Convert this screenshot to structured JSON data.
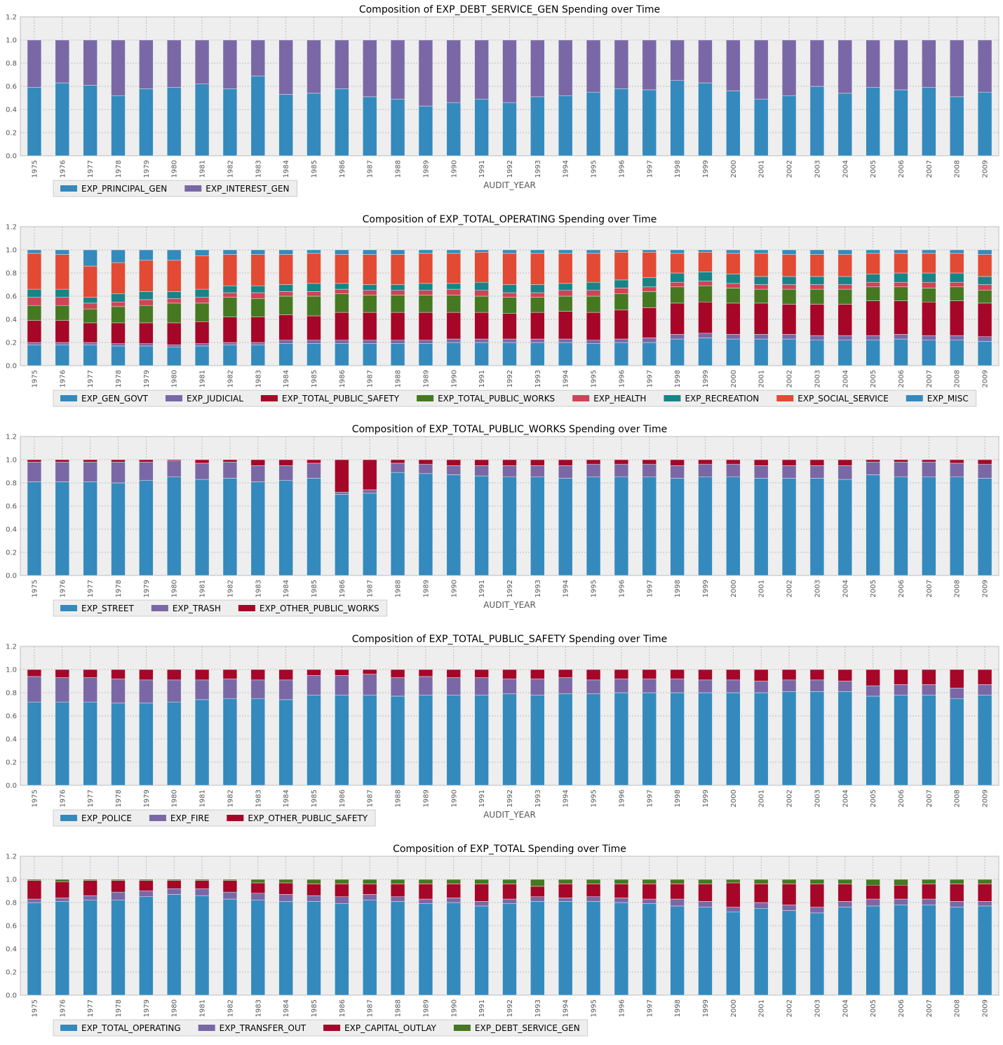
{
  "colors": {
    "panel_bg": "#EEEEEE",
    "grid": "#B0B0B0",
    "axis_text": "#555555",
    "title_text": "#000000",
    "bar_edge": "#EEEEEE",
    "palette": [
      "#348ABD",
      "#7A68A6",
      "#A60628",
      "#467821",
      "#CF4457",
      "#188487",
      "#E24A33",
      "#348ABD"
    ]
  },
  "chart_data": [
    {
      "type": "bar",
      "stacked": true,
      "title": "Composition of EXP_DEBT_SERVICE_GEN Spending over Time",
      "xlabel": "AUDIT_YEAR",
      "ylabel": "",
      "ylim": [
        0,
        1.2
      ],
      "yticks": [
        "0.0",
        "0.2",
        "0.4",
        "0.6",
        "0.8",
        "1.0",
        "1.2"
      ],
      "grid": true,
      "legend": "below-left",
      "categories": [
        "1975",
        "1976",
        "1977",
        "1978",
        "1979",
        "1980",
        "1981",
        "1982",
        "1983",
        "1984",
        "1985",
        "1986",
        "1987",
        "1988",
        "1989",
        "1990",
        "1991",
        "1992",
        "1993",
        "1994",
        "1995",
        "1996",
        "1997",
        "1998",
        "1999",
        "2000",
        "2001",
        "2002",
        "2003",
        "2004",
        "2005",
        "2006",
        "2007",
        "2008",
        "2009"
      ],
      "series": [
        {
          "name": "EXP_PRINCIPAL_GEN",
          "values": [
            0.59,
            0.63,
            0.61,
            0.52,
            0.58,
            0.59,
            0.62,
            0.58,
            0.69,
            0.53,
            0.54,
            0.58,
            0.51,
            0.49,
            0.43,
            0.46,
            0.49,
            0.46,
            0.51,
            0.52,
            0.55,
            0.58,
            0.57,
            0.65,
            0.63,
            0.56,
            0.49,
            0.52,
            0.6,
            0.54,
            0.59,
            0.57,
            0.59,
            0.51,
            0.55
          ]
        },
        {
          "name": "EXP_INTEREST_GEN",
          "values": [
            0.41,
            0.37,
            0.39,
            0.48,
            0.42,
            0.41,
            0.38,
            0.42,
            0.31,
            0.47,
            0.46,
            0.42,
            0.49,
            0.51,
            0.57,
            0.54,
            0.51,
            0.54,
            0.49,
            0.48,
            0.45,
            0.42,
            0.43,
            0.35,
            0.37,
            0.44,
            0.51,
            0.48,
            0.4,
            0.46,
            0.41,
            0.43,
            0.41,
            0.49,
            0.45
          ]
        }
      ]
    },
    {
      "type": "bar",
      "stacked": true,
      "title": "Composition of EXP_TOTAL_OPERATING Spending over Time",
      "xlabel": "",
      "ylabel": "",
      "ylim": [
        0,
        1.2
      ],
      "yticks": [
        "0.0",
        "0.2",
        "0.4",
        "0.6",
        "0.8",
        "1.0",
        "1.2"
      ],
      "grid": true,
      "legend": "below-left",
      "categories": [
        "1975",
        "1976",
        "1977",
        "1978",
        "1979",
        "1980",
        "1981",
        "1982",
        "1983",
        "1984",
        "1985",
        "1986",
        "1987",
        "1988",
        "1989",
        "1990",
        "1991",
        "1992",
        "1993",
        "1994",
        "1995",
        "1996",
        "1997",
        "1998",
        "1999",
        "2000",
        "2001",
        "2002",
        "2003",
        "2004",
        "2005",
        "2006",
        "2007",
        "2008",
        "2009"
      ],
      "series": [
        {
          "name": "EXP_GEN_GOVT",
          "values": [
            0.18,
            0.18,
            0.18,
            0.17,
            0.17,
            0.16,
            0.17,
            0.18,
            0.18,
            0.19,
            0.19,
            0.19,
            0.19,
            0.19,
            0.19,
            0.2,
            0.2,
            0.2,
            0.2,
            0.2,
            0.19,
            0.2,
            0.2,
            0.23,
            0.24,
            0.23,
            0.23,
            0.23,
            0.22,
            0.22,
            0.22,
            0.23,
            0.22,
            0.22,
            0.21
          ]
        },
        {
          "name": "EXP_JUDICIAL",
          "values": [
            0.02,
            0.02,
            0.02,
            0.02,
            0.02,
            0.02,
            0.02,
            0.02,
            0.02,
            0.03,
            0.03,
            0.03,
            0.03,
            0.03,
            0.03,
            0.03,
            0.03,
            0.03,
            0.03,
            0.03,
            0.03,
            0.03,
            0.04,
            0.04,
            0.04,
            0.04,
            0.04,
            0.04,
            0.04,
            0.04,
            0.04,
            0.04,
            0.04,
            0.04,
            0.04
          ]
        },
        {
          "name": "EXP_TOTAL_PUBLIC_SAFETY",
          "values": [
            0.19,
            0.19,
            0.17,
            0.18,
            0.18,
            0.19,
            0.19,
            0.22,
            0.22,
            0.22,
            0.21,
            0.24,
            0.24,
            0.24,
            0.24,
            0.23,
            0.23,
            0.22,
            0.23,
            0.24,
            0.24,
            0.25,
            0.26,
            0.27,
            0.27,
            0.27,
            0.27,
            0.26,
            0.27,
            0.27,
            0.3,
            0.29,
            0.29,
            0.3,
            0.29
          ]
        },
        {
          "name": "EXP_TOTAL_PUBLIC_WORKS",
          "values": [
            0.13,
            0.13,
            0.12,
            0.14,
            0.15,
            0.17,
            0.16,
            0.17,
            0.16,
            0.16,
            0.17,
            0.16,
            0.15,
            0.15,
            0.15,
            0.15,
            0.14,
            0.14,
            0.13,
            0.13,
            0.14,
            0.14,
            0.14,
            0.14,
            0.14,
            0.13,
            0.12,
            0.13,
            0.13,
            0.13,
            0.12,
            0.12,
            0.12,
            0.12,
            0.11
          ]
        },
        {
          "name": "EXP_HEALTH",
          "values": [
            0.07,
            0.07,
            0.05,
            0.04,
            0.05,
            0.04,
            0.05,
            0.04,
            0.05,
            0.04,
            0.04,
            0.04,
            0.04,
            0.04,
            0.04,
            0.05,
            0.05,
            0.04,
            0.04,
            0.05,
            0.05,
            0.05,
            0.04,
            0.04,
            0.04,
            0.04,
            0.04,
            0.04,
            0.04,
            0.04,
            0.04,
            0.04,
            0.05,
            0.04,
            0.05
          ]
        },
        {
          "name": "EXP_RECREATION",
          "values": [
            0.07,
            0.07,
            0.05,
            0.07,
            0.07,
            0.06,
            0.07,
            0.06,
            0.06,
            0.06,
            0.07,
            0.05,
            0.05,
            0.05,
            0.06,
            0.05,
            0.07,
            0.07,
            0.07,
            0.06,
            0.07,
            0.07,
            0.08,
            0.08,
            0.08,
            0.08,
            0.07,
            0.07,
            0.07,
            0.07,
            0.07,
            0.08,
            0.08,
            0.08,
            0.07
          ]
        },
        {
          "name": "EXP_SOCIAL_SERVICE",
          "values": [
            0.31,
            0.3,
            0.27,
            0.27,
            0.27,
            0.27,
            0.29,
            0.27,
            0.27,
            0.26,
            0.26,
            0.25,
            0.26,
            0.26,
            0.26,
            0.26,
            0.26,
            0.27,
            0.27,
            0.26,
            0.25,
            0.24,
            0.22,
            0.17,
            0.17,
            0.18,
            0.2,
            0.19,
            0.19,
            0.19,
            0.18,
            0.17,
            0.17,
            0.17,
            0.19
          ]
        },
        {
          "name": "EXP_MISC",
          "values": [
            0.03,
            0.04,
            0.14,
            0.11,
            0.09,
            0.09,
            0.05,
            0.04,
            0.04,
            0.04,
            0.03,
            0.04,
            0.04,
            0.04,
            0.03,
            0.03,
            0.02,
            0.03,
            0.03,
            0.03,
            0.03,
            0.02,
            0.02,
            0.03,
            0.02,
            0.03,
            0.03,
            0.04,
            0.04,
            0.04,
            0.03,
            0.03,
            0.03,
            0.03,
            0.04
          ]
        }
      ]
    },
    {
      "type": "bar",
      "stacked": true,
      "title": "Composition of EXP_TOTAL_PUBLIC_WORKS Spending over Time",
      "xlabel": "AUDIT_YEAR",
      "ylabel": "",
      "ylim": [
        0,
        1.2
      ],
      "yticks": [
        "0.0",
        "0.2",
        "0.4",
        "0.6",
        "0.8",
        "1.0",
        "1.2"
      ],
      "grid": true,
      "legend": "below-left",
      "categories": [
        "1975",
        "1976",
        "1977",
        "1978",
        "1979",
        "1980",
        "1981",
        "1982",
        "1983",
        "1984",
        "1985",
        "1986",
        "1987",
        "1988",
        "1989",
        "1990",
        "1991",
        "1992",
        "1993",
        "1994",
        "1995",
        "1996",
        "1997",
        "1998",
        "1999",
        "2000",
        "2001",
        "2002",
        "2003",
        "2004",
        "2005",
        "2006",
        "2007",
        "2008",
        "2009"
      ],
      "series": [
        {
          "name": "EXP_STREET",
          "values": [
            0.81,
            0.81,
            0.81,
            0.8,
            0.82,
            0.85,
            0.83,
            0.84,
            0.81,
            0.82,
            0.84,
            0.7,
            0.71,
            0.89,
            0.88,
            0.87,
            0.86,
            0.85,
            0.85,
            0.84,
            0.85,
            0.85,
            0.85,
            0.84,
            0.85,
            0.85,
            0.84,
            0.84,
            0.84,
            0.83,
            0.87,
            0.85,
            0.85,
            0.85,
            0.84
          ]
        },
        {
          "name": "EXP_TRASH",
          "values": [
            0.17,
            0.17,
            0.17,
            0.18,
            0.16,
            0.14,
            0.14,
            0.14,
            0.14,
            0.13,
            0.13,
            0.02,
            0.03,
            0.08,
            0.08,
            0.08,
            0.09,
            0.1,
            0.1,
            0.11,
            0.11,
            0.11,
            0.11,
            0.11,
            0.11,
            0.11,
            0.11,
            0.11,
            0.11,
            0.12,
            0.11,
            0.13,
            0.13,
            0.12,
            0.12
          ]
        },
        {
          "name": "EXP_OTHER_PUBLIC_WORKS",
          "values": [
            0.02,
            0.02,
            0.02,
            0.02,
            0.02,
            0.01,
            0.03,
            0.02,
            0.05,
            0.05,
            0.03,
            0.28,
            0.26,
            0.03,
            0.04,
            0.05,
            0.05,
            0.05,
            0.05,
            0.05,
            0.04,
            0.04,
            0.04,
            0.05,
            0.04,
            0.04,
            0.05,
            0.05,
            0.05,
            0.05,
            0.02,
            0.02,
            0.02,
            0.03,
            0.04
          ]
        }
      ]
    },
    {
      "type": "bar",
      "stacked": true,
      "title": "Composition of EXP_TOTAL_PUBLIC_SAFETY Spending over Time",
      "xlabel": "AUDIT_YEAR",
      "ylabel": "",
      "ylim": [
        0,
        1.2
      ],
      "yticks": [
        "0.0",
        "0.2",
        "0.4",
        "0.6",
        "0.8",
        "1.0",
        "1.2"
      ],
      "grid": true,
      "legend": "below-left",
      "categories": [
        "1975",
        "1976",
        "1977",
        "1978",
        "1979",
        "1980",
        "1981",
        "1982",
        "1983",
        "1984",
        "1985",
        "1986",
        "1987",
        "1988",
        "1989",
        "1990",
        "1991",
        "1992",
        "1993",
        "1994",
        "1995",
        "1996",
        "1997",
        "1998",
        "1999",
        "2000",
        "2001",
        "2002",
        "2003",
        "2004",
        "2005",
        "2006",
        "2007",
        "2008",
        "2009"
      ],
      "series": [
        {
          "name": "EXP_POLICE",
          "values": [
            0.72,
            0.72,
            0.72,
            0.71,
            0.71,
            0.72,
            0.74,
            0.75,
            0.75,
            0.74,
            0.78,
            0.78,
            0.78,
            0.77,
            0.78,
            0.78,
            0.78,
            0.79,
            0.78,
            0.79,
            0.79,
            0.8,
            0.8,
            0.8,
            0.8,
            0.8,
            0.8,
            0.81,
            0.81,
            0.81,
            0.77,
            0.78,
            0.78,
            0.75,
            0.78
          ]
        },
        {
          "name": "EXP_FIRE",
          "values": [
            0.22,
            0.21,
            0.21,
            0.21,
            0.2,
            0.19,
            0.17,
            0.17,
            0.16,
            0.17,
            0.17,
            0.17,
            0.18,
            0.16,
            0.16,
            0.15,
            0.15,
            0.13,
            0.14,
            0.14,
            0.12,
            0.12,
            0.12,
            0.12,
            0.11,
            0.11,
            0.1,
            0.1,
            0.1,
            0.09,
            0.09,
            0.09,
            0.09,
            0.09,
            0.09
          ]
        },
        {
          "name": "EXP_OTHER_PUBLIC_SAFETY",
          "values": [
            0.06,
            0.07,
            0.07,
            0.08,
            0.09,
            0.09,
            0.09,
            0.08,
            0.09,
            0.09,
            0.05,
            0.05,
            0.04,
            0.07,
            0.06,
            0.07,
            0.07,
            0.08,
            0.08,
            0.07,
            0.09,
            0.08,
            0.08,
            0.08,
            0.09,
            0.09,
            0.1,
            0.09,
            0.09,
            0.1,
            0.14,
            0.13,
            0.13,
            0.16,
            0.13
          ]
        }
      ]
    },
    {
      "type": "bar",
      "stacked": true,
      "title": "Composition of EXP_TOTAL Spending over Time",
      "xlabel": "",
      "ylabel": "",
      "ylim": [
        0,
        1.2
      ],
      "yticks": [
        "0.0",
        "0.2",
        "0.4",
        "0.6",
        "0.8",
        "1.0",
        "1.2"
      ],
      "grid": true,
      "legend": "below-left",
      "categories": [
        "1975",
        "1976",
        "1977",
        "1978",
        "1979",
        "1980",
        "1981",
        "1982",
        "1983",
        "1984",
        "1985",
        "1986",
        "1987",
        "1988",
        "1989",
        "1990",
        "1991",
        "1992",
        "1993",
        "1994",
        "1995",
        "1996",
        "1997",
        "1998",
        "1999",
        "2000",
        "2001",
        "2002",
        "2003",
        "2004",
        "2005",
        "2006",
        "2007",
        "2008",
        "2009"
      ],
      "series": [
        {
          "name": "EXP_TOTAL_OPERATING",
          "values": [
            0.8,
            0.81,
            0.82,
            0.82,
            0.85,
            0.87,
            0.86,
            0.83,
            0.82,
            0.81,
            0.81,
            0.79,
            0.82,
            0.81,
            0.79,
            0.8,
            0.77,
            0.79,
            0.81,
            0.81,
            0.81,
            0.8,
            0.79,
            0.77,
            0.76,
            0.72,
            0.75,
            0.73,
            0.71,
            0.76,
            0.77,
            0.78,
            0.78,
            0.76,
            0.77
          ]
        },
        {
          "name": "EXP_TRANSFER_OUT",
          "values": [
            0.03,
            0.03,
            0.04,
            0.07,
            0.05,
            0.05,
            0.06,
            0.06,
            0.06,
            0.06,
            0.05,
            0.06,
            0.05,
            0.04,
            0.04,
            0.04,
            0.04,
            0.04,
            0.04,
            0.03,
            0.04,
            0.04,
            0.04,
            0.06,
            0.05,
            0.04,
            0.05,
            0.05,
            0.05,
            0.05,
            0.06,
            0.05,
            0.05,
            0.05,
            0.04
          ]
        },
        {
          "name": "EXP_CAPITAL_OUTLAY",
          "values": [
            0.16,
            0.14,
            0.13,
            0.1,
            0.09,
            0.07,
            0.07,
            0.1,
            0.09,
            0.1,
            0.1,
            0.11,
            0.09,
            0.11,
            0.13,
            0.12,
            0.15,
            0.13,
            0.09,
            0.12,
            0.11,
            0.12,
            0.13,
            0.13,
            0.15,
            0.21,
            0.16,
            0.18,
            0.2,
            0.15,
            0.12,
            0.12,
            0.13,
            0.15,
            0.15
          ]
        },
        {
          "name": "EXP_DEBT_SERVICE_GEN",
          "values": [
            0.01,
            0.02,
            0.01,
            0.01,
            0.01,
            0.01,
            0.01,
            0.01,
            0.03,
            0.03,
            0.04,
            0.04,
            0.04,
            0.04,
            0.04,
            0.04,
            0.04,
            0.04,
            0.06,
            0.04,
            0.04,
            0.04,
            0.04,
            0.04,
            0.04,
            0.03,
            0.04,
            0.04,
            0.04,
            0.04,
            0.05,
            0.05,
            0.04,
            0.04,
            0.04
          ]
        }
      ]
    }
  ]
}
